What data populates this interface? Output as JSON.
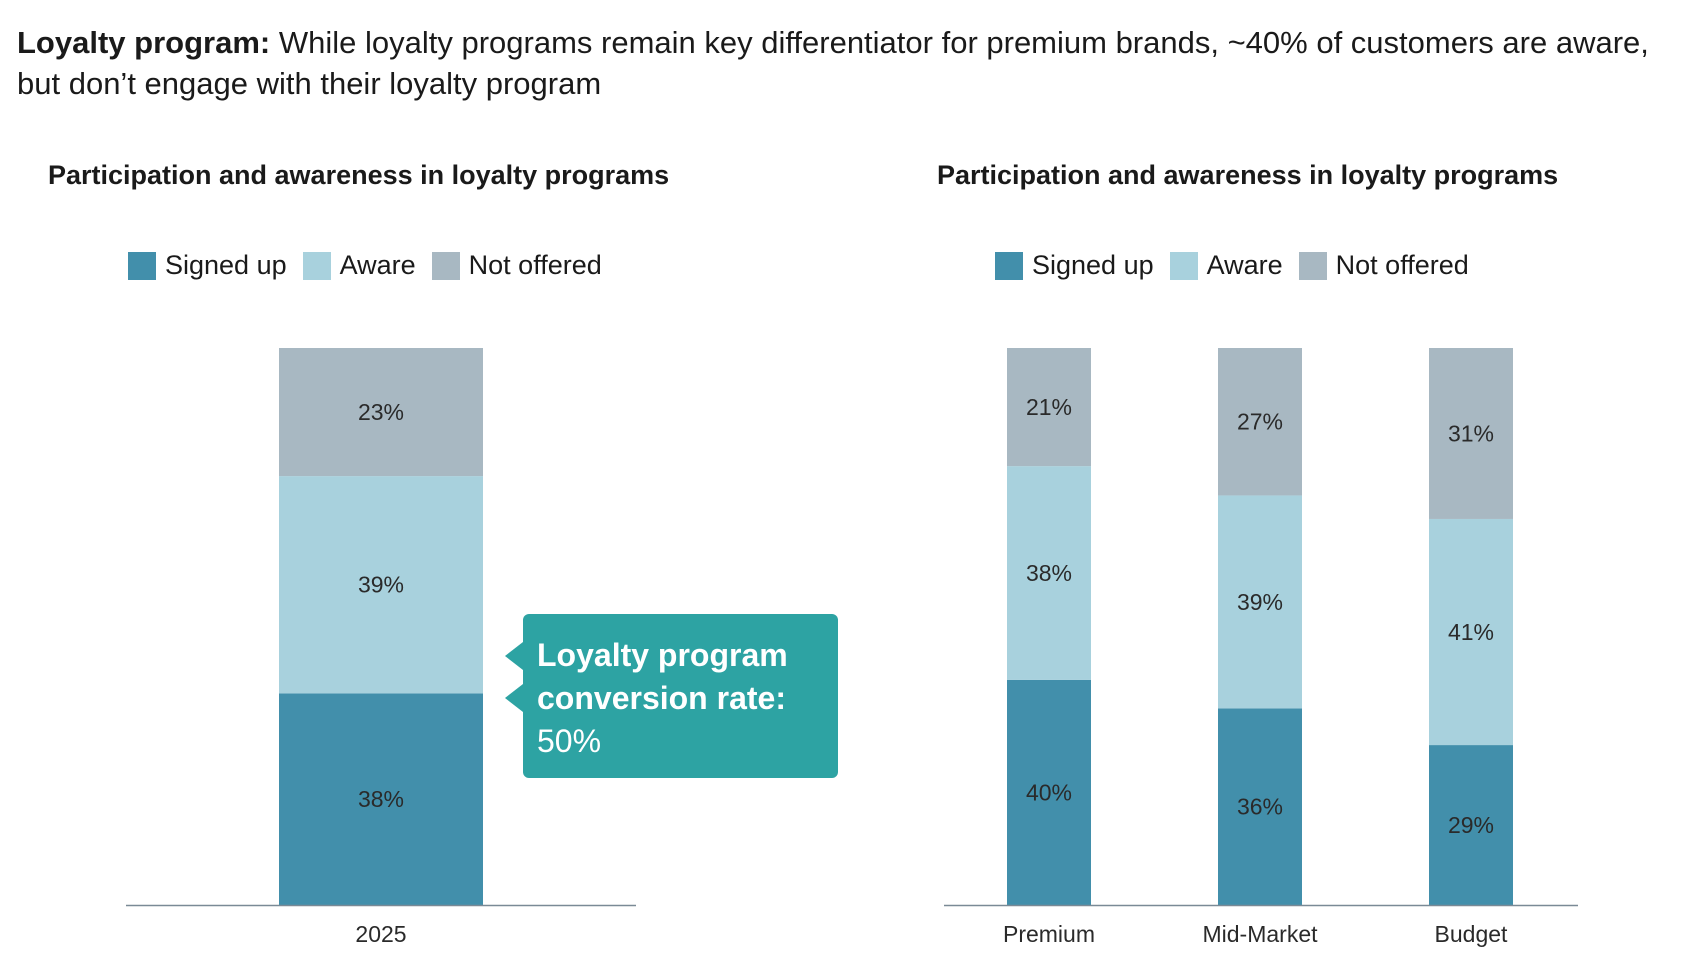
{
  "headline": {
    "bold": "Loyalty program:",
    "text": "While loyalty programs remain key differentiator for premium brands, ~40% of customers are aware, but don’t engage with their loyalty program"
  },
  "colors": {
    "signed_up": "#428fab",
    "aware": "#a8d1dd",
    "not_offered": "#a8b8c2",
    "callout": "#2da3a3",
    "axis": "#7a8a96"
  },
  "callout": {
    "line1": "Loyalty program",
    "line2": "conversion rate:",
    "value": "50%"
  },
  "chart_data": [
    {
      "type": "bar",
      "stacked": true,
      "title": "Participation and awareness in loyalty programs",
      "legend": [
        "Signed up",
        "Aware",
        "Not offered"
      ],
      "legend_position": "top-left",
      "categories": [
        "2025"
      ],
      "series": [
        {
          "name": "Signed up",
          "values": [
            38
          ],
          "labels": [
            "38%"
          ]
        },
        {
          "name": "Aware",
          "values": [
            39
          ],
          "labels": [
            "39%"
          ]
        },
        {
          "name": "Not offered",
          "values": [
            23
          ],
          "labels": [
            "23%"
          ]
        }
      ],
      "ylim": [
        0,
        100
      ],
      "grid": false
    },
    {
      "type": "bar",
      "stacked": true,
      "title": "Participation and awareness in loyalty programs",
      "legend": [
        "Signed up",
        "Aware",
        "Not offered"
      ],
      "legend_position": "top-left",
      "categories": [
        "Premium",
        "Mid-Market",
        "Budget"
      ],
      "series": [
        {
          "name": "Signed up",
          "values": [
            40,
            36,
            29
          ],
          "labels": [
            "40%",
            "36%",
            "29%"
          ]
        },
        {
          "name": "Aware",
          "values": [
            38,
            39,
            41
          ],
          "labels": [
            "38%",
            "39%",
            "41%"
          ]
        },
        {
          "name": "Not offered",
          "values": [
            21,
            27,
            31
          ],
          "labels": [
            "21%",
            "27%",
            "31%"
          ]
        }
      ],
      "ylim": [
        0,
        100
      ],
      "grid": false
    }
  ]
}
